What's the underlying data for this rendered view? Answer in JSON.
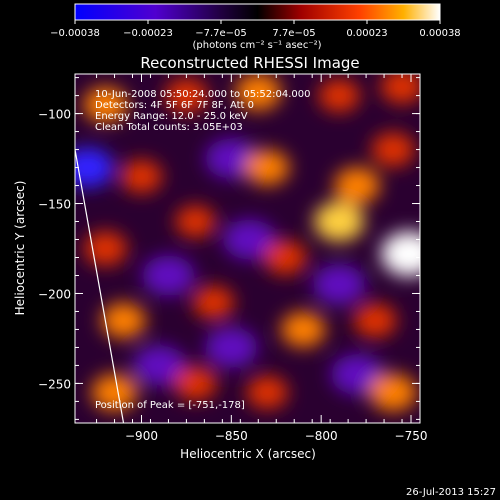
{
  "chart_data": {
    "type": "heatmap",
    "title": "Reconstructed RHESSI Image",
    "xlabel": "Heliocentric X (arcsec)",
    "ylabel": "Heliocentric Y (arcsec)",
    "xlim": [
      -937,
      -745
    ],
    "ylim": [
      -272,
      -78
    ],
    "x_ticks": [
      {
        "value": -900,
        "label": "−900"
      },
      {
        "value": -850,
        "label": "−850"
      },
      {
        "value": -800,
        "label": "−800"
      },
      {
        "value": -750,
        "label": "−750"
      }
    ],
    "y_ticks": [
      {
        "value": -100,
        "label": "−100"
      },
      {
        "value": -150,
        "label": "−150"
      },
      {
        "value": -200,
        "label": "−200"
      },
      {
        "value": -250,
        "label": "−250"
      }
    ],
    "colorbar": {
      "range": [
        -0.00038,
        0.00038
      ],
      "tick_labels": [
        "−0.00038",
        "−0.00023",
        "−7.7e−05",
        "7.7e−05",
        "0.00023",
        "0.00038"
      ],
      "units": "(photons cm⁻² s⁻¹ asec⁻²)",
      "colormap": [
        "#0000ff",
        "#6000c0",
        "#000000",
        "#d02000",
        "#ffa000",
        "#ffffff"
      ]
    },
    "annotations": [
      "10-Jun-2008 05:50:24.000 to 05:52:04.000",
      "Detectors: 4F 5F 6F 7F 8F, Att 0",
      "Energy Range: 12.0 - 25.0 keV",
      "Clean    Total counts: 3.05E+03"
    ],
    "peak_label": "Position of Peak = [-751,-178]",
    "peak": [
      -751,
      -178
    ],
    "limb_line": [
      [
        -937,
        -120
      ],
      [
        -910,
        -272
      ]
    ],
    "hot_spots": [
      {
        "x": -920,
        "y": -95,
        "v": 0.00022
      },
      {
        "x": -875,
        "y": -90,
        "v": 0.0002
      },
      {
        "x": -835,
        "y": -88,
        "v": 0.00024
      },
      {
        "x": -790,
        "y": -90,
        "v": 0.00018
      },
      {
        "x": -755,
        "y": -85,
        "v": 0.0002
      },
      {
        "x": -900,
        "y": -135,
        "v": 0.00018
      },
      {
        "x": -830,
        "y": -130,
        "v": 0.00022
      },
      {
        "x": -780,
        "y": -140,
        "v": 0.00024
      },
      {
        "x": -760,
        "y": -120,
        "v": 0.0002
      },
      {
        "x": -920,
        "y": -175,
        "v": 0.0002
      },
      {
        "x": -870,
        "y": -160,
        "v": 0.00016
      },
      {
        "x": -820,
        "y": -180,
        "v": 0.0002
      },
      {
        "x": -751,
        "y": -178,
        "v": 0.00038
      },
      {
        "x": -790,
        "y": -160,
        "v": 0.0003
      },
      {
        "x": -910,
        "y": -215,
        "v": 0.00022
      },
      {
        "x": -860,
        "y": -205,
        "v": 0.00018
      },
      {
        "x": -810,
        "y": -220,
        "v": 0.00022
      },
      {
        "x": -770,
        "y": -215,
        "v": 0.0002
      },
      {
        "x": -915,
        "y": -255,
        "v": 0.00024
      },
      {
        "x": -870,
        "y": -250,
        "v": 0.0002
      },
      {
        "x": -830,
        "y": -255,
        "v": 0.00018
      },
      {
        "x": -760,
        "y": -255,
        "v": 0.00026
      }
    ],
    "cold_spots": [
      {
        "x": -930,
        "y": -130,
        "v": -0.00025
      },
      {
        "x": -850,
        "y": -125,
        "v": -0.00018
      },
      {
        "x": -885,
        "y": -190,
        "v": -0.00015
      },
      {
        "x": -840,
        "y": -170,
        "v": -0.00018
      },
      {
        "x": -790,
        "y": -195,
        "v": -0.00015
      },
      {
        "x": -850,
        "y": -230,
        "v": -0.0002
      },
      {
        "x": -890,
        "y": -240,
        "v": -0.00014
      },
      {
        "x": -780,
        "y": -245,
        "v": -0.00016
      }
    ]
  },
  "footer": {
    "date": "26-Jul-2013 15:27"
  }
}
